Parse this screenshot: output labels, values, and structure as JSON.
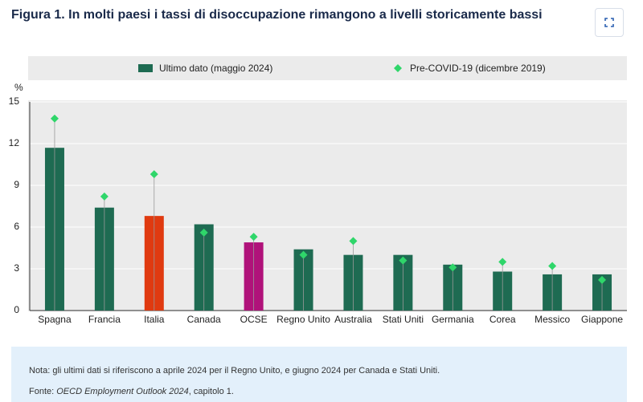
{
  "chart_data": {
    "type": "bar",
    "title": "Figura 1. In molti paesi i tassi di disoccupazione rimangono a livelli storicamente bassi",
    "y_label": "%",
    "categories": [
      "Spagna",
      "Francia",
      "Italia",
      "Canada",
      "OCSE",
      "Regno Unito",
      "Australia",
      "Stati Uniti",
      "Germania",
      "Corea",
      "Messico",
      "Giappone"
    ],
    "series": [
      {
        "name": "Ultimo dato (maggio 2024)",
        "color": "#1e6b52",
        "highlight_colors": {
          "Italia": "#e03a10",
          "OCSE": "#b0127a"
        },
        "values": [
          11.7,
          7.4,
          6.8,
          6.2,
          4.9,
          4.4,
          4.0,
          4.0,
          3.3,
          2.8,
          2.6,
          2.6
        ]
      },
      {
        "name": "Pre-COVID-19 (dicembre 2019)",
        "color": "#2fd66a",
        "marker": "diamond",
        "values": [
          13.8,
          8.2,
          9.8,
          5.6,
          5.3,
          4.0,
          5.0,
          3.6,
          3.1,
          3.5,
          3.2,
          2.2
        ]
      }
    ],
    "ylim": [
      0,
      15
    ],
    "yticks": [
      0,
      3,
      6,
      9,
      12,
      15
    ],
    "grid": true,
    "legend": "top"
  },
  "notes": {
    "note": "Nota: gli ultimi dati si riferiscono a aprile 2024 per il Regno Unito, e giugno 2024 per Canada e Stati Uniti.",
    "source_prefix": "Fonte: ",
    "source_title": "OECD Employment Outlook 2024",
    "source_suffix": ", capitolo 1."
  }
}
